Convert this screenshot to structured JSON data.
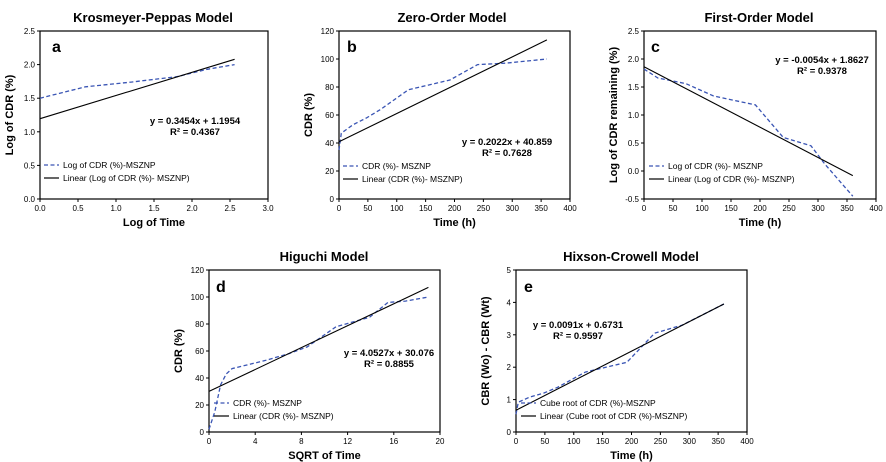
{
  "chart_data": [
    {
      "type": "line",
      "panel": "a",
      "title": "Krosmeyer-Peppas Model",
      "xlabel": "Log of Time",
      "ylabel": "Log of CDR (%)",
      "xlim": [
        0,
        3.0
      ],
      "ylim": [
        0,
        2.5
      ],
      "xticks": [
        "0.0",
        "0.5",
        "1.0",
        "1.5",
        "2.0",
        "2.5",
        "3.0"
      ],
      "yticks": [
        "0.0",
        "0.5",
        "1.0",
        "1.5",
        "2.0",
        "2.5"
      ],
      "series": [
        {
          "name": "Log of CDR (%)-MSZNP",
          "style": "dashed",
          "color": "#3a55b4",
          "x": [
            0.0,
            0.6,
            1.2,
            1.8,
            2.2,
            2.56
          ],
          "y": [
            1.5,
            1.67,
            1.74,
            1.82,
            1.93,
            2.0
          ]
        },
        {
          "name": "Linear (Log of CDR (%)- MSZNP)",
          "style": "solid",
          "color": "#000000",
          "x": [
            0.0,
            2.56
          ],
          "y": [
            1.1954,
            2.0796
          ]
        }
      ],
      "equation": "y = 0.3454x + 1.1954",
      "r2": "R² = 0.4367",
      "legend_position": "bottom-left"
    },
    {
      "type": "line",
      "panel": "b",
      "title": "Zero-Order Model",
      "xlabel": "Time (h)",
      "ylabel": "CDR (%)",
      "xlim": [
        0,
        400
      ],
      "ylim": [
        0,
        120
      ],
      "xticks": [
        "0",
        "50",
        "100",
        "150",
        "200",
        "250",
        "300",
        "350",
        "400"
      ],
      "yticks": [
        "0",
        "20",
        "40",
        "60",
        "80",
        "100",
        "120"
      ],
      "series": [
        {
          "name": "CDR (%)- MSZNP",
          "style": "dashed",
          "color": "#3a55b4",
          "x": [
            0,
            4,
            24,
            48,
            72,
            120,
            192,
            240,
            288,
            360
          ],
          "y": [
            35,
            47,
            53,
            58,
            64,
            78,
            85,
            96,
            97,
            100
          ]
        },
        {
          "name": "Linear (CDR (%)- MSZNP)",
          "style": "solid",
          "color": "#000000",
          "x": [
            0,
            360
          ],
          "y": [
            40.859,
            113.65
          ]
        }
      ],
      "equation": "y = 0.2022x + 40.859",
      "r2": "R² = 0.7628",
      "legend_position": "bottom-left"
    },
    {
      "type": "line",
      "panel": "c",
      "title": "First-Order Model",
      "xlabel": "Time (h)",
      "ylabel": "Log of CDR remaining (%)",
      "xlim": [
        0,
        400
      ],
      "ylim": [
        -0.5,
        2.5
      ],
      "xticks": [
        "0",
        "50",
        "100",
        "150",
        "200",
        "250",
        "300",
        "350",
        "400"
      ],
      "yticks": [
        "-0.5",
        "0.0",
        "0.5",
        "1.0",
        "1.5",
        "2.0",
        "2.5"
      ],
      "series": [
        {
          "name": "Log of CDR (%)- MSZNP",
          "style": "dashed",
          "color": "#3a55b4",
          "x": [
            0,
            24,
            72,
            120,
            192,
            240,
            288,
            312,
            360
          ],
          "y": [
            1.82,
            1.66,
            1.56,
            1.34,
            1.18,
            0.6,
            0.45,
            0.12,
            -0.45
          ]
        },
        {
          "name": "Linear (Log of CDR (%)- MSZNP)",
          "style": "solid",
          "color": "#000000",
          "x": [
            0,
            360
          ],
          "y": [
            1.8627,
            -0.0813
          ]
        }
      ],
      "equation": "y = -0.0054x + 1.8627",
      "r2": "R² = 0.9378",
      "legend_position": "bottom-left"
    },
    {
      "type": "line",
      "panel": "d",
      "title": "Higuchi Model",
      "xlabel": "SQRT of Time",
      "ylabel": "CDR (%)",
      "xlim": [
        0,
        20
      ],
      "ylim": [
        0,
        120
      ],
      "xticks": [
        "0",
        "4",
        "8",
        "12",
        "16",
        "20"
      ],
      "yticks": [
        "0",
        "20",
        "40",
        "60",
        "80",
        "100",
        "120"
      ],
      "series": [
        {
          "name": "CDR (%)- MSZNP",
          "style": "dashed",
          "color": "#3a55b4",
          "x": [
            0,
            0.5,
            1.0,
            1.5,
            2.0,
            4.9,
            6.9,
            8.5,
            11.0,
            13.9,
            15.5,
            17.0,
            19.0
          ],
          "y": [
            2,
            15,
            35,
            43,
            47,
            53,
            58,
            63,
            78,
            85,
            96,
            97,
            100
          ]
        },
        {
          "name": "Linear (CDR (%)- MSZNP)",
          "style": "solid",
          "color": "#000000",
          "x": [
            0,
            19
          ],
          "y": [
            30.076,
            107.08
          ]
        }
      ],
      "equation": "y = 4.0527x + 30.076",
      "r2": "R² = 0.8855",
      "legend_position": "bottom-left"
    },
    {
      "type": "line",
      "panel": "e",
      "title": "Hixson-Crowell Model",
      "xlabel": "Time (h)",
      "ylabel": "CBR (Wo) - CBR (Wt)",
      "xlim": [
        0,
        400
      ],
      "ylim": [
        0,
        5
      ],
      "xticks": [
        "0",
        "50",
        "100",
        "150",
        "200",
        "250",
        "300",
        "350",
        "400"
      ],
      "yticks": [
        "0",
        "1",
        "2",
        "3",
        "4",
        "5"
      ],
      "series": [
        {
          "name": "Cube root of CDR (%)-MSZNP",
          "style": "dashed",
          "color": "#3a55b4",
          "x": [
            0,
            4,
            24,
            48,
            72,
            120,
            192,
            240,
            288,
            360
          ],
          "y": [
            0.55,
            0.92,
            1.08,
            1.2,
            1.38,
            1.85,
            2.15,
            3.05,
            3.3,
            3.95
          ]
        },
        {
          "name": "Linear (Cube root of CDR (%)-MSZNP)",
          "style": "solid",
          "color": "#000000",
          "x": [
            0,
            360
          ],
          "y": [
            0.6731,
            3.9491
          ]
        }
      ],
      "equation": "y = 0.0091x + 0.6731",
      "r2": "R² = 0.9597",
      "legend_position": "bottom-left"
    }
  ]
}
